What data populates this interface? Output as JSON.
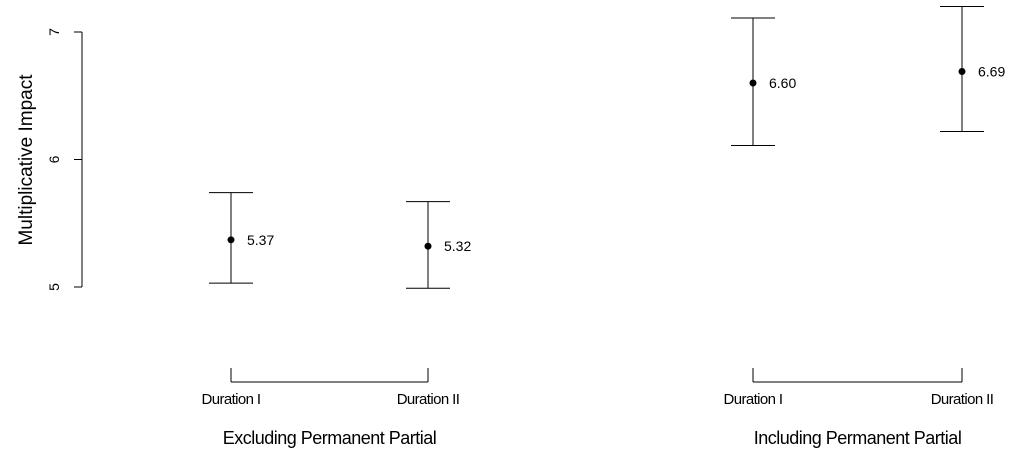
{
  "chart_data": {
    "type": "scatter",
    "ylabel": "Multiplicative Impact",
    "yticks": [
      5,
      6,
      7
    ],
    "ylim": [
      4.97,
      7.22
    ],
    "groups": [
      {
        "label": "Excluding Permanent Partial",
        "categories": [
          "Duration I",
          "Duration II"
        ],
        "points": [
          {
            "category": "Duration I",
            "value": 5.37,
            "lower": 5.03,
            "upper": 5.74,
            "label": "5.37"
          },
          {
            "category": "Duration II",
            "value": 5.32,
            "lower": 4.99,
            "upper": 5.67,
            "label": "5.32"
          }
        ]
      },
      {
        "label": "Including Permanent Partial",
        "categories": [
          "Duration I",
          "Duration II"
        ],
        "points": [
          {
            "category": "Duration I",
            "value": 6.6,
            "lower": 6.11,
            "upper": 7.11,
            "label": "6.60"
          },
          {
            "category": "Duration II",
            "value": 6.69,
            "lower": 6.22,
            "upper": 7.2,
            "label": "6.69"
          }
        ]
      }
    ]
  }
}
